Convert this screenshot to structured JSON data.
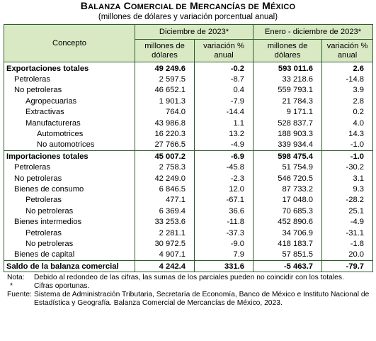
{
  "title_big1": "B",
  "title_small1": "ALANZA",
  "title_big2": " C",
  "title_small2": "OMERCIAL DE",
  "title_big3": " M",
  "title_small3": "ERCANCÍAS DE",
  "title_big4": " M",
  "title_small4": "ÉXICO",
  "subtitle": "(millones de dólares y variación porcentual anual)",
  "header": {
    "concept": "Concepto",
    "period1": "Diciembre de 2023*",
    "period2": "Enero - diciembre de 2023*",
    "col_millions_1": "millones de",
    "col_millions_2": "dólares",
    "col_var_1": "variación %",
    "col_var_2": "anual"
  },
  "rows": [
    {
      "label": "Exportaciones totales",
      "dec_m": "49 249.6",
      "dec_v": "-0.2",
      "ytd_m": "593 011.6",
      "ytd_v": "2.6"
    },
    {
      "label": "Petroleras",
      "dec_m": "2 597.5",
      "dec_v": "-8.7",
      "ytd_m": "33 218.6",
      "ytd_v": "-14.8"
    },
    {
      "label": "No petroleras",
      "dec_m": "46 652.1",
      "dec_v": "0.4",
      "ytd_m": "559 793.1",
      "ytd_v": "3.9"
    },
    {
      "label": "Agropecuarias",
      "dec_m": "1 901.3",
      "dec_v": "-7.9",
      "ytd_m": "21 784.3",
      "ytd_v": "2.8"
    },
    {
      "label": "Extractivas",
      "dec_m": "764.0",
      "dec_v": "-14.4",
      "ytd_m": "9 171.1",
      "ytd_v": "0.2"
    },
    {
      "label": "Manufactureras",
      "dec_m": "43 986.8",
      "dec_v": "1.1",
      "ytd_m": "528 837.7",
      "ytd_v": "4.0"
    },
    {
      "label": "Automotrices",
      "dec_m": "16 220.3",
      "dec_v": "13.2",
      "ytd_m": "188 903.3",
      "ytd_v": "14.3"
    },
    {
      "label": "No automotrices",
      "dec_m": "27 766.5",
      "dec_v": "-4.9",
      "ytd_m": "339 934.4",
      "ytd_v": "-1.0"
    },
    {
      "label": "Importaciones totales",
      "dec_m": "45 007.2",
      "dec_v": "-6.9",
      "ytd_m": "598 475.4",
      "ytd_v": "-1.0"
    },
    {
      "label": "Petroleras",
      "dec_m": "2 758.3",
      "dec_v": "-45.8",
      "ytd_m": "51 754.9",
      "ytd_v": "-30.2"
    },
    {
      "label": "No petroleras",
      "dec_m": "42 249.0",
      "dec_v": "-2.3",
      "ytd_m": "546 720.5",
      "ytd_v": "3.1"
    },
    {
      "label": "Bienes de consumo",
      "dec_m": "6 846.5",
      "dec_v": "12.0",
      "ytd_m": "87 733.2",
      "ytd_v": "9.3"
    },
    {
      "label": "Petroleras",
      "dec_m": "477.1",
      "dec_v": "-67.1",
      "ytd_m": "17 048.0",
      "ytd_v": "-28.2"
    },
    {
      "label": "No petroleras",
      "dec_m": "6 369.4",
      "dec_v": "36.6",
      "ytd_m": "70 685.3",
      "ytd_v": "25.1"
    },
    {
      "label": "Bienes intermedios",
      "dec_m": "33 253.6",
      "dec_v": "-11.8",
      "ytd_m": "452 890.6",
      "ytd_v": "-4.9"
    },
    {
      "label": "Petroleras",
      "dec_m": "2 281.1",
      "dec_v": "-37.3",
      "ytd_m": "34 706.9",
      "ytd_v": "-31.1"
    },
    {
      "label": "No petroleras",
      "dec_m": "30 972.5",
      "dec_v": "-9.0",
      "ytd_m": "418 183.7",
      "ytd_v": "-1.8"
    },
    {
      "label": "Bienes de capital",
      "dec_m": "4 907.1",
      "dec_v": "7.9",
      "ytd_m": "57 851.5",
      "ytd_v": "20.0"
    },
    {
      "label": "Saldo de la balanza comercial",
      "dec_m": "4 242.4",
      "dec_v": "331.6",
      "ytd_m": "-5 463.7",
      "ytd_v": "-79.7"
    }
  ],
  "notes": {
    "nota_key": "Nota:",
    "nota_text": "Debido al redondeo de las cifras, las sumas de los parciales pueden no coincidir con los totales.",
    "star_key": "*",
    "star_text": "Cifras oportunas.",
    "fuente_key": "Fuente:",
    "fuente_text": "Sistema de Administración Tributaria, Secretaría de Economía, Banco de México e Instituto Nacional de Estadística y Geografía. Balanza Comercial de Mercancías de México, 2023."
  }
}
